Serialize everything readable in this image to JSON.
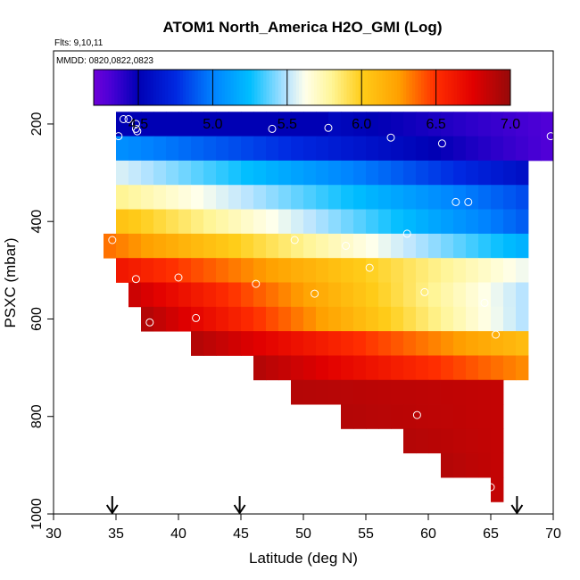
{
  "chart_data": {
    "type": "heatmap",
    "title": "ATOM1 North_America H2O_GMI (Log)",
    "flights_label": "Flts: 9,10,11",
    "dates_label": "MMDD: 0820,0822,0823",
    "xlabel": "Latitude (deg N)",
    "ylabel": "PSXC (mbar)",
    "xlim": [
      30,
      70
    ],
    "ylim": [
      1000,
      50
    ],
    "xticks": [
      30,
      35,
      40,
      45,
      50,
      55,
      60,
      65,
      70
    ],
    "yticks": [
      200,
      400,
      600,
      800,
      1000
    ],
    "colorbar": {
      "range": [
        4.2,
        7.0
      ],
      "ticks": [
        4.5,
        5.0,
        5.5,
        6.0,
        6.5,
        7.0
      ],
      "tick_labels": [
        "4.5",
        "5.0",
        "5.5",
        "6.0",
        "6.5",
        "7.0"
      ]
    },
    "lat_bin_width": 1,
    "pressure_bin_height": 50,
    "rows": [
      {
        "p": 200,
        "lat_start": 35,
        "lat_end": 52,
        "left_value": 4.5,
        "right_value": 4.5
      },
      {
        "p": 200,
        "lat_start": 52,
        "lat_end": 70,
        "left_value": 4.55,
        "right_value": 4.3
      },
      {
        "p": 250,
        "lat_start": 35,
        "lat_end": 70,
        "left_value": 5.05,
        "right_value": 4.3
      },
      {
        "p": 300,
        "lat_start": 35,
        "lat_end": 68,
        "left_value": 5.55,
        "right_value": 4.6
      },
      {
        "p": 350,
        "lat_start": 35,
        "lat_end": 68,
        "left_value": 5.8,
        "right_value": 4.85
      },
      {
        "p": 400,
        "lat_start": 35,
        "lat_end": 68,
        "left_value": 6.05,
        "right_value": 4.9
      },
      {
        "p": 450,
        "lat_start": 34,
        "lat_end": 68,
        "left_value": 6.35,
        "right_value": 5.2
      },
      {
        "p": 500,
        "lat_start": 35,
        "lat_end": 68,
        "left_value": 6.62,
        "right_value": 5.6
      },
      {
        "p": 550,
        "lat_start": 36,
        "lat_end": 68,
        "left_value": 6.82,
        "right_value": 5.5
      },
      {
        "p": 600,
        "lat_start": 37,
        "lat_end": 68,
        "left_value": 6.9,
        "right_value": 5.5
      },
      {
        "p": 650,
        "lat_start": 41,
        "lat_end": 68,
        "left_value": 6.9,
        "right_value": 6.1
      },
      {
        "p": 700,
        "lat_start": 46,
        "lat_end": 68,
        "left_value": 6.9,
        "right_value": 6.3
      },
      {
        "p": 750,
        "lat_start": 49,
        "lat_end": 66,
        "left_value": 6.9,
        "right_value": 6.85
      },
      {
        "p": 800,
        "lat_start": 53,
        "lat_end": 66,
        "left_value": 6.9,
        "right_value": 6.85
      },
      {
        "p": 850,
        "lat_start": 58,
        "lat_end": 66,
        "left_value": 6.9,
        "right_value": 6.85
      },
      {
        "p": 900,
        "lat_start": 61,
        "lat_end": 66,
        "left_value": 6.9,
        "right_value": 6.85
      },
      {
        "p": 950,
        "lat_start": 65,
        "lat_end": 66,
        "left_value": 6.85,
        "right_value": 6.85
      }
    ],
    "points": [
      {
        "lat": 35.6,
        "p": 190
      },
      {
        "lat": 36.0,
        "p": 190
      },
      {
        "lat": 36.6,
        "p": 200
      },
      {
        "lat": 36.6,
        "p": 210
      },
      {
        "lat": 35.2,
        "p": 225
      },
      {
        "lat": 36.7,
        "p": 215
      },
      {
        "lat": 47.5,
        "p": 210
      },
      {
        "lat": 52.0,
        "p": 208
      },
      {
        "lat": 57.0,
        "p": 228
      },
      {
        "lat": 61.1,
        "p": 240
      },
      {
        "lat": 69.8,
        "p": 225
      },
      {
        "lat": 62.2,
        "p": 360
      },
      {
        "lat": 63.2,
        "p": 360
      },
      {
        "lat": 58.3,
        "p": 425
      },
      {
        "lat": 49.3,
        "p": 438
      },
      {
        "lat": 53.4,
        "p": 450
      },
      {
        "lat": 34.7,
        "p": 438
      },
      {
        "lat": 55.3,
        "p": 495
      },
      {
        "lat": 36.6,
        "p": 518
      },
      {
        "lat": 40.0,
        "p": 515
      },
      {
        "lat": 46.2,
        "p": 528
      },
      {
        "lat": 50.9,
        "p": 548
      },
      {
        "lat": 59.7,
        "p": 545
      },
      {
        "lat": 64.5,
        "p": 567
      },
      {
        "lat": 37.7,
        "p": 607
      },
      {
        "lat": 41.4,
        "p": 598
      },
      {
        "lat": 65.4,
        "p": 632
      },
      {
        "lat": 59.1,
        "p": 797
      },
      {
        "lat": 65.0,
        "p": 945
      }
    ],
    "arrows_lat": [
      34.7,
      44.9,
      67.1
    ]
  }
}
